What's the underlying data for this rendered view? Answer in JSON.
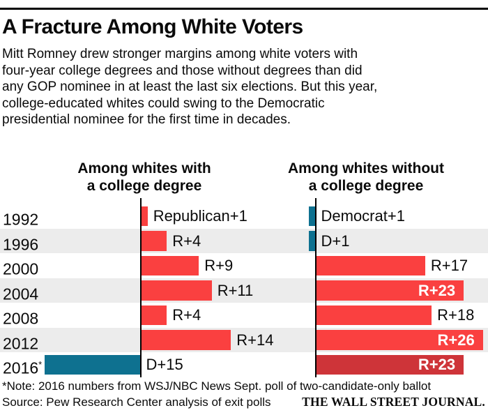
{
  "page": {
    "title": "A Fracture Among White Voters",
    "subtitle": "Mitt Romney drew stronger margins among white voters with\nfour-year college degrees and those without degrees than did\nany GOP nominee in at least the last six elections. But this year,\ncollege-educated whites could swing to the Democratic\npresidential nominee for the first time in decades."
  },
  "chart_data": {
    "type": "bar",
    "orientation": "horizontal",
    "title": "A Fracture Among White Voters",
    "categories": [
      "1992",
      "1996",
      "2000",
      "2004",
      "2008",
      "2012",
      "2016"
    ],
    "value_unit": "percentage-point margin; positive = Republican advantage (R+), negative = Democratic advantage (D+)",
    "series": [
      {
        "name": "Among whites with a college degree",
        "margins": [
          1,
          4,
          9,
          11,
          4,
          14,
          -15
        ],
        "labels": [
          "Republican+1",
          "R+4",
          "R+9",
          "R+11",
          "R+4",
          "R+14",
          "D+15"
        ]
      },
      {
        "name": "Among whites without a college degree",
        "margins": [
          -1,
          -1,
          17,
          23,
          18,
          26,
          23
        ],
        "labels": [
          "Democrat+1",
          "D+1",
          "R+17",
          "R+23",
          "R+18",
          "R+26",
          "R+23"
        ]
      }
    ],
    "legend_position": "none",
    "grid": false,
    "note": "2016 numbers from WSJ/NBC News Sept. poll of two-candidate-only ballot (shown in darker red / blue)"
  },
  "chart": {
    "panels": {
      "left": "Among whites with\na college degree",
      "right": "Among whites without\na college degree"
    },
    "colors": {
      "republican": "#fa4040",
      "democrat": "#0e7190",
      "republican_poll": "#ce3439",
      "stripe": "#ececec"
    },
    "rows": [
      {
        "year": "1992",
        "college": {
          "label": "Republican+1",
          "value": 1,
          "party": "R"
        },
        "non_college": {
          "label": "Democrat+1",
          "value": 1,
          "party": "D"
        }
      },
      {
        "year": "1996",
        "college": {
          "label": "R+4",
          "value": 4,
          "party": "R"
        },
        "non_college": {
          "label": "D+1",
          "value": 1,
          "party": "D"
        }
      },
      {
        "year": "2000",
        "college": {
          "label": "R+9",
          "value": 9,
          "party": "R"
        },
        "non_college": {
          "label": "R+17",
          "value": 17,
          "party": "R"
        }
      },
      {
        "year": "2004",
        "college": {
          "label": "R+11",
          "value": 11,
          "party": "R"
        },
        "non_college": {
          "label": "R+23",
          "value": 23,
          "party": "R",
          "label_inside": true
        }
      },
      {
        "year": "2008",
        "college": {
          "label": "R+4",
          "value": 4,
          "party": "R"
        },
        "non_college": {
          "label": "R+18",
          "value": 18,
          "party": "R"
        }
      },
      {
        "year": "2012",
        "college": {
          "label": "R+14",
          "value": 14,
          "party": "R"
        },
        "non_college": {
          "label": "R+26",
          "value": 26,
          "party": "R",
          "label_inside": true
        }
      },
      {
        "year": "2016",
        "suffix": "*",
        "college": {
          "label": "D+15",
          "value": 15,
          "party": "D"
        },
        "non_college": {
          "label": "R+23",
          "value": 23,
          "party": "R",
          "dark": true,
          "label_inside": true
        }
      }
    ]
  },
  "footer": {
    "note": "*Note: 2016 numbers from WSJ/NBC News Sept. poll of two-candidate-only ballot",
    "source": "Source: Pew Research Center analysis of exit polls",
    "brand": "THE WALL STREET JOURNAL."
  }
}
